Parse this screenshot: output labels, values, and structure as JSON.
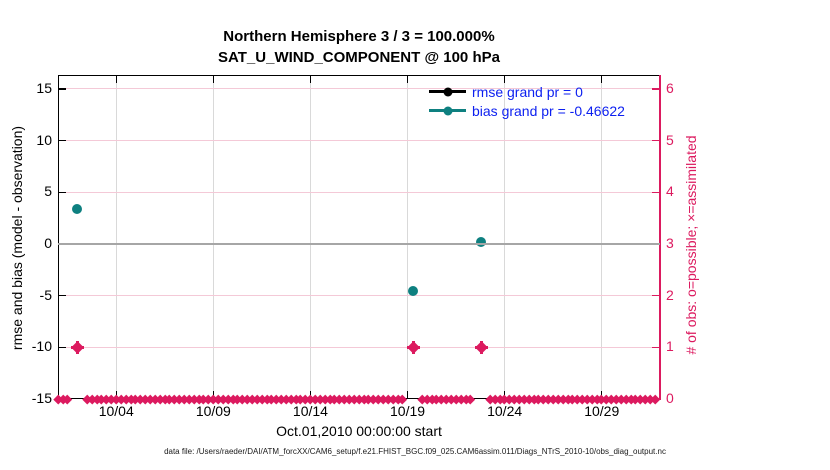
{
  "title_line1": "Northern Hemisphere 3 / 3 = 100.000%",
  "title_line2": "SAT_U_WIND_COMPONENT @ 100 hPa",
  "left_axis_label": "rmse and bias (model - observation)",
  "right_axis_label": "# of obs: o=possible; ×=assimilated",
  "x_axis_label": "Oct.01,2010 00:00:00 start",
  "footer": "data file: /Users/raeder/DAI/ATM_forcXX/CAM6_setup/f.e21.FHIST_BGC.f09_025.CAM6assim.011/Diags_NTrS_2010-10/obs_diag_output.nc",
  "legend": {
    "rmse_label": "rmse grand pr = 0",
    "bias_label": "bias grand pr = -0.46622"
  },
  "colors": {
    "pink": "#dc1a5f",
    "pink_gridline": "#f4c9d7",
    "gray_gridline": "#d9d9d9",
    "zero_line_gray": "#a6a6a6",
    "teal": "#0e8080",
    "legend_text_blue": "#0c1ff0",
    "black": "#000000"
  },
  "chart_data": {
    "type": "scatter",
    "title": "Northern Hemisphere 3 / 3 = 100.000% | SAT_U_WIND_COMPONENT @ 100 hPa",
    "xlabel": "Oct.01,2010 00:00:00 start",
    "ylabel_left": "rmse and bias (model - observation)",
    "ylabel_right": "# of obs: o=possible; ×=assimilated",
    "x_tick_labels": [
      "10/04",
      "10/09",
      "10/14",
      "10/19",
      "10/24",
      "10/29"
    ],
    "x_tick_days": [
      3,
      8,
      13,
      18,
      23,
      28
    ],
    "x_range_days": [
      0,
      31
    ],
    "left_ticks": [
      15,
      10,
      5,
      0,
      -5,
      -10,
      -15
    ],
    "left_range": [
      -15,
      16.35
    ],
    "right_ticks": [
      6,
      5,
      4,
      3,
      2,
      1,
      0
    ],
    "right_range": [
      0,
      6.27
    ],
    "grid": true,
    "legend_position": "top-right-inside",
    "zero_line_value": 0,
    "series": [
      {
        "name": "rmse",
        "label": "rmse grand pr = 0",
        "color": "#000000",
        "points": []
      },
      {
        "name": "bias",
        "label": "bias grand pr = -0.46622",
        "color": "#0e8080",
        "points": [
          {
            "day": 1.0,
            "date": "10/02",
            "value": 3.4
          },
          {
            "day": 18.3,
            "date": "10/19",
            "value": -4.55
          },
          {
            "day": 21.8,
            "date": "10/23",
            "value": 0.15
          }
        ]
      }
    ],
    "obs_counts": {
      "axis": "right",
      "marker_color": "#dc1a5f",
      "step_days": 0.25,
      "default_count": 0,
      "nonzero": [
        {
          "day": 1.0,
          "date": "10/02",
          "count": 1
        },
        {
          "day": 18.3,
          "date": "10/19",
          "count": 1
        },
        {
          "day": 21.8,
          "date": "10/23",
          "count": 1
        }
      ]
    }
  }
}
